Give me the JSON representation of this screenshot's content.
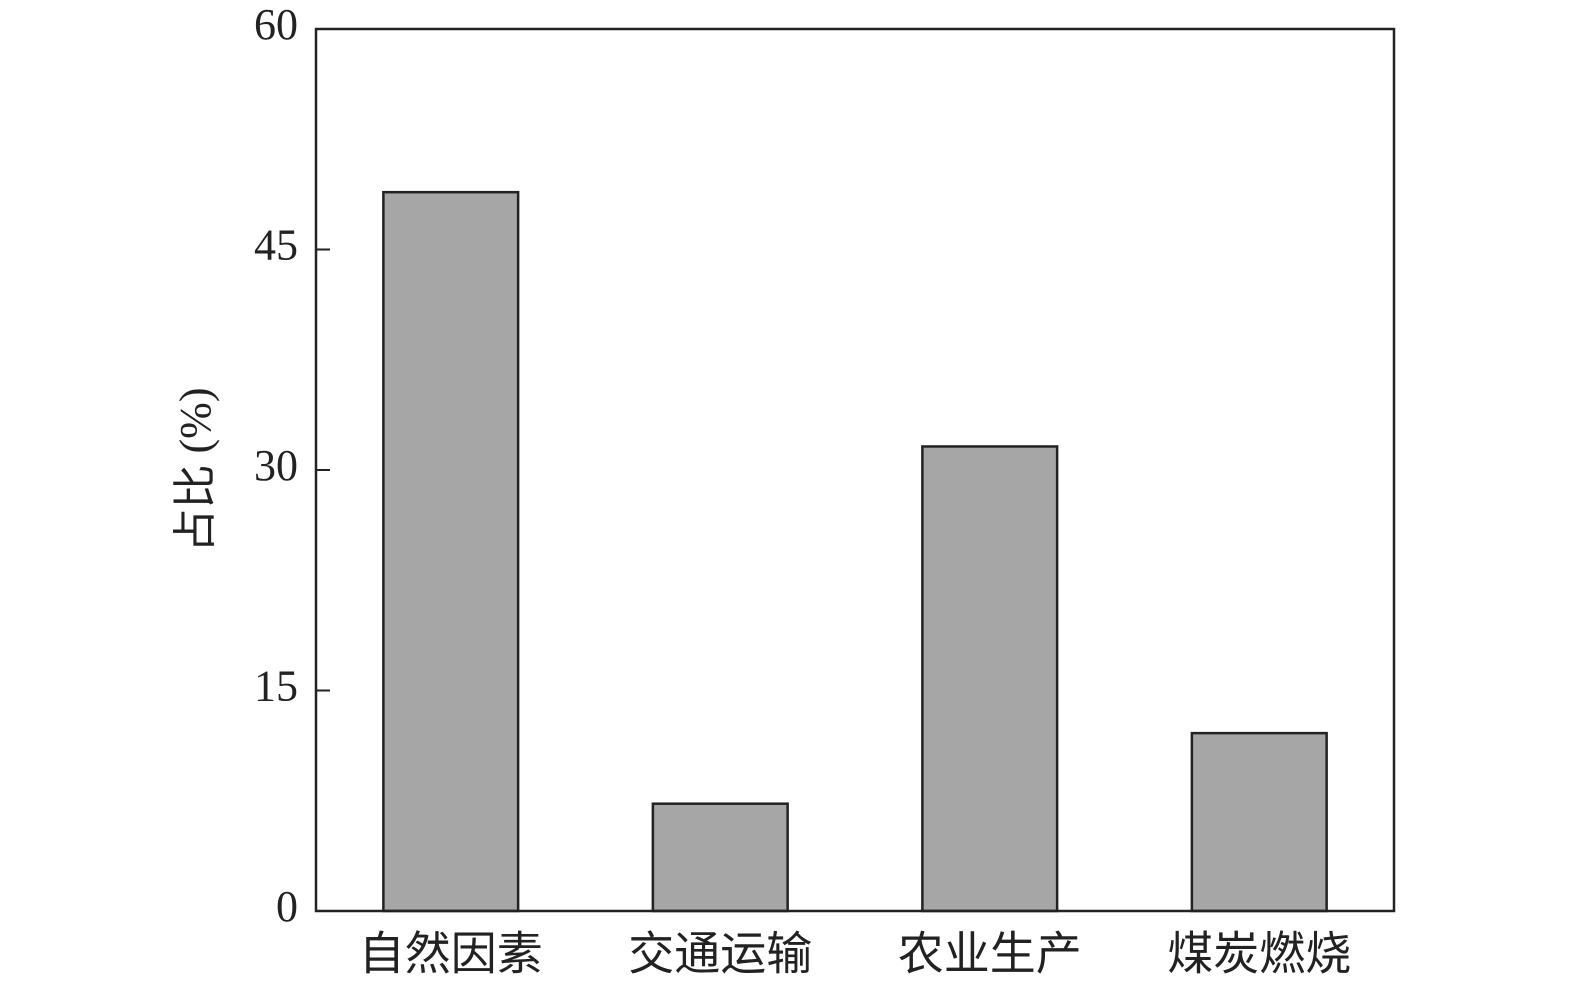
{
  "chart_data": {
    "type": "bar",
    "y_label": "占比 (%)",
    "categories": [
      "自然因素",
      "交通运输",
      "农业生产",
      "煤炭燃烧"
    ],
    "values": [
      48.9,
      7.3,
      31.6,
      12.1
    ],
    "color": "#a7a6a7",
    "ylim": [
      0,
      60
    ],
    "yticks": [
      0,
      15,
      30,
      45,
      60
    ],
    "grid": false
  }
}
